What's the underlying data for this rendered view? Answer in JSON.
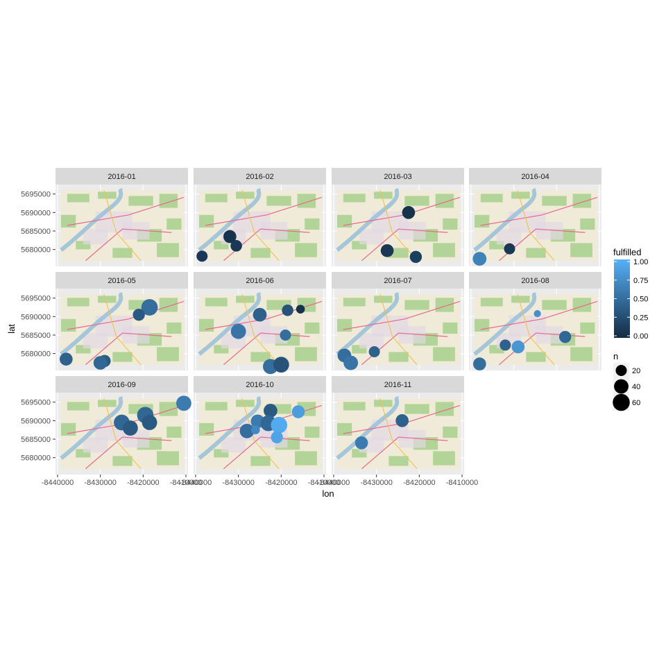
{
  "chart_data": {
    "type": "scatter",
    "subtype": "faceted map with bubbles",
    "xlabel": "lon",
    "ylabel": "lat",
    "xlim": [
      -8440000,
      -8410000
    ],
    "ylim": [
      5676000,
      5697000
    ],
    "x_ticks": [
      -8440000,
      -8430000,
      -8420000,
      -8410000
    ],
    "x_tick_labels": [
      "-8440000",
      "-8430000",
      "-8420000",
      "-8410000"
    ],
    "y_ticks": [
      5680000,
      5685000,
      5690000,
      5695000
    ],
    "y_tick_labels": [
      "5680000",
      "5685000",
      "5690000",
      "5695000"
    ],
    "map_extent": {
      "lon": [
        -8440000,
        -8410000
      ],
      "lat": [
        5677000,
        5696000
      ]
    },
    "facets": [
      {
        "label": "2016-01",
        "points": []
      },
      {
        "label": "2016-02",
        "points": [
          {
            "x": -8438500,
            "y": 5678200,
            "n": 20,
            "fulfilled": 0.1
          },
          {
            "x": -8432000,
            "y": 5683500,
            "n": 30,
            "fulfilled": 0.05
          },
          {
            "x": -8430500,
            "y": 5681000,
            "n": 22,
            "fulfilled": 0.1
          }
        ]
      },
      {
        "label": "2016-03",
        "points": [
          {
            "x": -8422500,
            "y": 5690000,
            "n": 30,
            "fulfilled": 0.05
          },
          {
            "x": -8427500,
            "y": 5679700,
            "n": 30,
            "fulfilled": 0.1
          },
          {
            "x": -8420800,
            "y": 5678000,
            "n": 25,
            "fulfilled": 0.15
          }
        ]
      },
      {
        "label": "2016-04",
        "points": [
          {
            "x": -8438000,
            "y": 5677500,
            "n": 35,
            "fulfilled": 0.65
          },
          {
            "x": -8431000,
            "y": 5680200,
            "n": 20,
            "fulfilled": 0.1
          }
        ]
      },
      {
        "label": "2016-05",
        "points": [
          {
            "x": -8418500,
            "y": 5692500,
            "n": 55,
            "fulfilled": 0.5
          },
          {
            "x": -8421000,
            "y": 5690500,
            "n": 25,
            "fulfilled": 0.35
          },
          {
            "x": -8438000,
            "y": 5678500,
            "n": 30,
            "fulfilled": 0.4
          },
          {
            "x": -8429000,
            "y": 5678000,
            "n": 25,
            "fulfilled": 0.35
          },
          {
            "x": -8430000,
            "y": 5677500,
            "n": 35,
            "fulfilled": 0.45
          }
        ]
      },
      {
        "label": "2016-06",
        "points": [
          {
            "x": -8425000,
            "y": 5690500,
            "n": 35,
            "fulfilled": 0.4
          },
          {
            "x": -8418500,
            "y": 5691700,
            "n": 22,
            "fulfilled": 0.3
          },
          {
            "x": -8415500,
            "y": 5692000,
            "n": 10,
            "fulfilled": 0.05
          },
          {
            "x": -8430000,
            "y": 5686000,
            "n": 45,
            "fulfilled": 0.55
          },
          {
            "x": -8419000,
            "y": 5685000,
            "n": 20,
            "fulfilled": 0.5
          },
          {
            "x": -8422500,
            "y": 5676500,
            "n": 45,
            "fulfilled": 0.5
          },
          {
            "x": -8420000,
            "y": 5677000,
            "n": 50,
            "fulfilled": 0.3
          }
        ]
      },
      {
        "label": "2016-07",
        "points": [
          {
            "x": -8437500,
            "y": 5679500,
            "n": 35,
            "fulfilled": 0.5
          },
          {
            "x": -8436000,
            "y": 5677500,
            "n": 40,
            "fulfilled": 0.55
          },
          {
            "x": -8430500,
            "y": 5680500,
            "n": 20,
            "fulfilled": 0.4
          }
        ]
      },
      {
        "label": "2016-08",
        "points": [
          {
            "x": -8438000,
            "y": 5677200,
            "n": 30,
            "fulfilled": 0.5
          },
          {
            "x": -8432000,
            "y": 5682300,
            "n": 20,
            "fulfilled": 0.4
          },
          {
            "x": -8429000,
            "y": 5681800,
            "n": 30,
            "fulfilled": 0.8
          },
          {
            "x": -8424500,
            "y": 5690800,
            "n": 5,
            "fulfilled": 0.75
          },
          {
            "x": -8418000,
            "y": 5684500,
            "n": 25,
            "fulfilled": 0.45
          }
        ]
      },
      {
        "label": "2016-09",
        "points": [
          {
            "x": -8425000,
            "y": 5689500,
            "n": 50,
            "fulfilled": 0.45
          },
          {
            "x": -8423000,
            "y": 5688000,
            "n": 45,
            "fulfilled": 0.35
          },
          {
            "x": -8419500,
            "y": 5691500,
            "n": 55,
            "fulfilled": 0.45
          },
          {
            "x": -8418500,
            "y": 5689500,
            "n": 45,
            "fulfilled": 0.35
          },
          {
            "x": -8410500,
            "y": 5694700,
            "n": 45,
            "fulfilled": 0.6
          }
        ]
      },
      {
        "label": "2016-10",
        "points": [
          {
            "x": -8422500,
            "y": 5692700,
            "n": 35,
            "fulfilled": 0.35
          },
          {
            "x": -8416000,
            "y": 5692400,
            "n": 30,
            "fulfilled": 0.85
          },
          {
            "x": -8425500,
            "y": 5689800,
            "n": 35,
            "fulfilled": 0.6
          },
          {
            "x": -8423000,
            "y": 5689300,
            "n": 50,
            "fulfilled": 0.45
          },
          {
            "x": -8420500,
            "y": 5688800,
            "n": 55,
            "fulfilled": 0.95
          },
          {
            "x": -8428000,
            "y": 5687200,
            "n": 40,
            "fulfilled": 0.5
          },
          {
            "x": -8426000,
            "y": 5687500,
            "n": 10,
            "fulfilled": 0.7
          },
          {
            "x": -8421000,
            "y": 5685500,
            "n": 25,
            "fulfilled": 0.9
          }
        ]
      },
      {
        "label": "2016-11",
        "points": [
          {
            "x": -8424000,
            "y": 5690000,
            "n": 30,
            "fulfilled": 0.4
          },
          {
            "x": -8433500,
            "y": 5684000,
            "n": 30,
            "fulfilled": 0.6
          }
        ]
      }
    ],
    "legend_fill": {
      "title": "fulfilled",
      "breaks": [
        1.0,
        0.75,
        0.5,
        0.25,
        0.0
      ],
      "labels": [
        "1.00",
        "0.75",
        "0.50",
        "0.25",
        "0.00"
      ],
      "low_color": "#132B43",
      "high_color": "#56B1F7"
    },
    "legend_size": {
      "title": "n",
      "breaks": [
        20,
        40,
        60
      ],
      "labels": [
        "20",
        "40",
        "60"
      ]
    },
    "grid": true,
    "legend_position": "right"
  }
}
